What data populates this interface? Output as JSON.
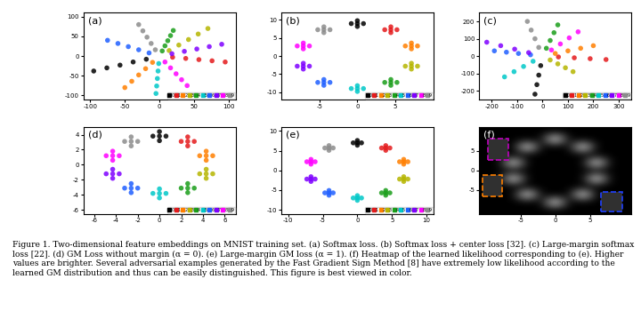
{
  "caption": "Figure 1. Two-dimensional feature embeddings on MNIST training set. (a) Softmax loss. (b) Softmax loss + center loss [32]. (c) Large-margin softmax loss [22]. (d) GM Loss without margin (α = 0). (e) Large-margin GM loss (α = 1). (f) Heatmap of the learned likelihood corresponding to (e). Higher values are brighter. Several adversarial examples generated by the Fast Gradient Sign Method [8] have extremely low likelihood according to the learned GM distribution and thus can be easily distinguished. This figure is best viewed in color.",
  "chart_data": [
    {
      "type": "scatter",
      "title": "(a)",
      "legend": "lower right",
      "xlim": [
        -110,
        110
      ],
      "xticks": [
        -100,
        -50,
        0,
        50,
        100
      ],
      "ylim": [
        -110,
        110
      ],
      "yticks": [
        -100,
        -50,
        0,
        50,
        100
      ],
      "series": [
        {
          "name": "0",
          "color": "#000000",
          "x": [
            -19,
            -38,
            -57,
            -76,
            -95
          ],
          "y": [
            -8,
            -15,
            -23,
            -30,
            -38
          ]
        },
        {
          "name": "1",
          "color": "#e41a1c",
          "x": [
            19,
            38,
            57,
            76,
            95
          ],
          "y": [
            -3,
            -6,
            -9,
            -12,
            -15
          ]
        },
        {
          "name": "2",
          "color": "#ff7f00",
          "x": [
            -10,
            -20,
            -30,
            -40,
            -50
          ],
          "y": [
            -16,
            -32,
            -48,
            -64,
            -80
          ]
        },
        {
          "name": "3",
          "color": "#b5b500",
          "x": [
            14,
            28,
            42,
            56,
            70
          ],
          "y": [
            14,
            28,
            42,
            56,
            70
          ]
        },
        {
          "name": "4",
          "color": "#1a9e1a",
          "x": [
            4,
            8,
            12,
            16,
            20
          ],
          "y": [
            13,
            26,
            39,
            52,
            65
          ]
        },
        {
          "name": "5",
          "color": "#00c8c8",
          "x": [
            -1,
            -2,
            -3,
            -4,
            -5
          ],
          "y": [
            -19,
            -38,
            -57,
            -76,
            -95
          ]
        },
        {
          "name": "6",
          "color": "#1f5fff",
          "x": [
            -15,
            -30,
            -45,
            -60,
            -75
          ],
          "y": [
            8,
            16,
            24,
            32,
            40
          ]
        },
        {
          "name": "7",
          "color": "#7f00ff",
          "x": [
            18,
            36,
            54,
            72,
            90
          ],
          "y": [
            6,
            12,
            18,
            24,
            30
          ]
        },
        {
          "name": "8",
          "color": "#ff00ff",
          "x": [
            8,
            16,
            24,
            32,
            40
          ],
          "y": [
            -15,
            -30,
            -45,
            -60,
            -75
          ]
        },
        {
          "name": "9",
          "color": "#8c8c8c",
          "x": [
            -6,
            -12,
            -18,
            -24,
            -30
          ],
          "y": [
            16,
            32,
            48,
            64,
            80
          ]
        }
      ]
    },
    {
      "type": "scatter",
      "title": "(b)",
      "legend": "lower right",
      "xlim": [
        -10,
        10
      ],
      "xticks": [
        -5,
        0,
        5
      ],
      "ylim": [
        -12,
        12
      ],
      "yticks": [
        -10,
        -5,
        0,
        5,
        10
      ],
      "series": [
        {
          "name": "0",
          "color": "#000000",
          "x": [
            0,
            -0.8,
            0.8,
            0,
            0
          ],
          "y": [
            9,
            9,
            9,
            8.2,
            9.8
          ]
        },
        {
          "name": "1",
          "color": "#e41a1c",
          "x": [
            4.4,
            3.6,
            5.2,
            4.4,
            4.4
          ],
          "y": [
            7.3,
            7.3,
            7.3,
            6.5,
            8.1
          ]
        },
        {
          "name": "2",
          "color": "#ff7f00",
          "x": [
            7.1,
            6.3,
            7.9,
            7.1,
            7.1
          ],
          "y": [
            2.8,
            2.8,
            2.8,
            2.0,
            3.6
          ]
        },
        {
          "name": "3",
          "color": "#b5b500",
          "x": [
            7.1,
            6.3,
            7.9,
            7.1,
            7.1
          ],
          "y": [
            -2.8,
            -2.8,
            -2.8,
            -3.6,
            -2.0
          ]
        },
        {
          "name": "4",
          "color": "#1a9e1a",
          "x": [
            4.4,
            3.6,
            5.2,
            4.4,
            4.4
          ],
          "y": [
            -7.3,
            -7.3,
            -7.3,
            -8.1,
            -6.5
          ]
        },
        {
          "name": "5",
          "color": "#00c8c8",
          "x": [
            0,
            -0.8,
            0.8,
            0,
            0
          ],
          "y": [
            -9,
            -9,
            -9,
            -9.8,
            -8.2
          ]
        },
        {
          "name": "6",
          "color": "#1f5fff",
          "x": [
            -4.4,
            -5.2,
            -3.6,
            -4.4,
            -4.4
          ],
          "y": [
            -7.3,
            -7.3,
            -7.3,
            -8.1,
            -6.5
          ]
        },
        {
          "name": "7",
          "color": "#7f00ff",
          "x": [
            -7.1,
            -7.9,
            -6.3,
            -7.1,
            -7.1
          ],
          "y": [
            -2.8,
            -2.8,
            -2.8,
            -3.6,
            -2.0
          ]
        },
        {
          "name": "8",
          "color": "#ff00ff",
          "x": [
            -7.1,
            -7.9,
            -6.3,
            -7.1,
            -7.1
          ],
          "y": [
            2.8,
            2.8,
            2.8,
            2.0,
            3.6
          ]
        },
        {
          "name": "9",
          "color": "#8c8c8c",
          "x": [
            -4.4,
            -5.2,
            -3.6,
            -4.4,
            -4.4
          ],
          "y": [
            7.3,
            7.3,
            7.3,
            6.5,
            8.1
          ]
        }
      ]
    },
    {
      "type": "scatter",
      "title": "(c)",
      "legend": "lower right",
      "xlim": [
        -250,
        350
      ],
      "xticks": [
        -200,
        -100,
        0,
        100,
        200,
        300
      ],
      "ylim": [
        -250,
        250
      ],
      "yticks": [
        -200,
        -100,
        0,
        100,
        200
      ],
      "series": [
        {
          "name": "0",
          "color": "#000000",
          "x": [
            -7.5,
            -15,
            -22.5,
            -30
          ],
          "y": [
            -55,
            -110,
            -165,
            -220
          ]
        },
        {
          "name": "1",
          "color": "#e41a1c",
          "x": [
            62.5,
            125,
            187.5,
            250
          ],
          "y": [
            -5,
            -10,
            -15,
            -20
          ]
        },
        {
          "name": "2",
          "color": "#ff7f00",
          "x": [
            50,
            100,
            150,
            200
          ],
          "y": [
            15,
            30,
            45,
            60
          ]
        },
        {
          "name": "3",
          "color": "#b5b500",
          "x": [
            30,
            60,
            90,
            120
          ],
          "y": [
            -22.5,
            -45,
            -67.5,
            -90
          ]
        },
        {
          "name": "4",
          "color": "#1a9e1a",
          "x": [
            15,
            30,
            45,
            60
          ],
          "y": [
            45,
            90,
            135,
            180
          ]
        },
        {
          "name": "5",
          "color": "#00c8c8",
          "x": [
            -37.5,
            -75,
            -112.5,
            -150
          ],
          "y": [
            -30,
            -60,
            -90,
            -120
          ]
        },
        {
          "name": "6",
          "color": "#1f5fff",
          "x": [
            -47.5,
            -95,
            -142.5,
            -190
          ],
          "y": [
            7.5,
            15,
            22.5,
            30
          ]
        },
        {
          "name": "7",
          "color": "#7f00ff",
          "x": [
            -55,
            -110,
            -165,
            -220
          ],
          "y": [
            20,
            40,
            60,
            80
          ]
        },
        {
          "name": "8",
          "color": "#ff00ff",
          "x": [
            35,
            70,
            105,
            140
          ],
          "y": [
            35,
            70,
            105,
            140
          ]
        },
        {
          "name": "9",
          "color": "#8c8c8c",
          "x": [
            -15,
            -30,
            -45,
            -60
          ],
          "y": [
            50,
            100,
            150,
            200
          ]
        }
      ]
    },
    {
      "type": "scatter",
      "title": "(d)",
      "legend": "lower right",
      "xlim": [
        -7,
        7
      ],
      "xticks": [
        -6,
        -4,
        -2,
        0,
        2,
        4,
        6
      ],
      "ylim": [
        -6.5,
        5
      ],
      "yticks": [
        -6,
        -4,
        -2,
        0,
        2,
        4
      ],
      "series": [
        {
          "name": "0",
          "color": "#000000",
          "x": [
            0,
            -0.6,
            0.6,
            0,
            0
          ],
          "y": [
            3.8,
            3.8,
            3.8,
            3.2,
            4.4
          ]
        },
        {
          "name": "1",
          "color": "#e41a1c",
          "x": [
            2.6,
            2.0,
            3.2,
            2.6,
            2.6
          ],
          "y": [
            3.1,
            3.1,
            3.1,
            2.5,
            3.7
          ]
        },
        {
          "name": "2",
          "color": "#ff7f00",
          "x": [
            4.3,
            3.7,
            4.9,
            4.3,
            4.3
          ],
          "y": [
            1.2,
            1.2,
            1.2,
            0.6,
            1.8
          ]
        },
        {
          "name": "3",
          "color": "#b5b500",
          "x": [
            4.3,
            3.7,
            4.9,
            4.3,
            4.3
          ],
          "y": [
            -1.2,
            -1.2,
            -1.2,
            -1.8,
            -0.6
          ]
        },
        {
          "name": "4",
          "color": "#1a9e1a",
          "x": [
            2.6,
            2.0,
            3.2,
            2.6,
            2.6
          ],
          "y": [
            -3.1,
            -3.1,
            -3.1,
            -3.7,
            -2.5
          ]
        },
        {
          "name": "5",
          "color": "#00c8c8",
          "x": [
            0,
            -0.6,
            0.6,
            0,
            0
          ],
          "y": [
            -3.8,
            -3.8,
            -3.8,
            -4.4,
            -3.2
          ]
        },
        {
          "name": "6",
          "color": "#1f5fff",
          "x": [
            -2.6,
            -3.2,
            -2.0,
            -2.6,
            -2.6
          ],
          "y": [
            -3.1,
            -3.1,
            -3.1,
            -3.7,
            -2.5
          ]
        },
        {
          "name": "7",
          "color": "#7f00ff",
          "x": [
            -4.3,
            -4.9,
            -3.7,
            -4.3,
            -4.3
          ],
          "y": [
            -1.2,
            -1.2,
            -1.2,
            -1.8,
            -0.6
          ]
        },
        {
          "name": "8",
          "color": "#ff00ff",
          "x": [
            -4.3,
            -4.9,
            -3.7,
            -4.3,
            -4.3
          ],
          "y": [
            1.2,
            1.2,
            1.2,
            0.6,
            1.8
          ]
        },
        {
          "name": "9",
          "color": "#8c8c8c",
          "x": [
            -2.6,
            -3.2,
            -2.0,
            -2.6,
            -2.6
          ],
          "y": [
            3.1,
            3.1,
            3.1,
            2.5,
            3.7
          ]
        }
      ]
    },
    {
      "type": "scatter",
      "title": "(e)",
      "legend": "lower right",
      "xlim": [
        -11,
        11
      ],
      "xticks": [
        -10,
        -5,
        0,
        5,
        10
      ],
      "ylim": [
        -11,
        11
      ],
      "yticks": [
        -10,
        -5,
        0,
        5,
        10
      ],
      "series": [
        {
          "name": "0",
          "color": "#000000",
          "x": [
            0,
            -0.6,
            0.6,
            0,
            0
          ],
          "y": [
            7,
            7,
            7,
            6.4,
            7.6
          ]
        },
        {
          "name": "1",
          "color": "#e41a1c",
          "x": [
            4.1,
            3.5,
            4.7,
            4.1,
            4.1
          ],
          "y": [
            5.7,
            5.7,
            5.7,
            5.1,
            6.3
          ]
        },
        {
          "name": "2",
          "color": "#ff7f00",
          "x": [
            6.7,
            6.1,
            7.3,
            6.7,
            6.7
          ],
          "y": [
            2.2,
            2.2,
            2.2,
            1.6,
            2.8
          ]
        },
        {
          "name": "3",
          "color": "#b5b500",
          "x": [
            6.7,
            6.1,
            7.3,
            6.7,
            6.7
          ],
          "y": [
            -2.2,
            -2.2,
            -2.2,
            -2.8,
            -1.6
          ]
        },
        {
          "name": "4",
          "color": "#1a9e1a",
          "x": [
            4.1,
            3.5,
            4.7,
            4.1,
            4.1
          ],
          "y": [
            -5.7,
            -5.7,
            -5.7,
            -6.3,
            -5.1
          ]
        },
        {
          "name": "5",
          "color": "#00c8c8",
          "x": [
            0,
            -0.6,
            0.6,
            0,
            0
          ],
          "y": [
            -7,
            -7,
            -7,
            -7.6,
            -6.4
          ]
        },
        {
          "name": "6",
          "color": "#1f5fff",
          "x": [
            -4.1,
            -4.7,
            -3.5,
            -4.1,
            -4.1
          ],
          "y": [
            -5.7,
            -5.7,
            -5.7,
            -6.3,
            -5.1
          ]
        },
        {
          "name": "7",
          "color": "#7f00ff",
          "x": [
            -6.7,
            -7.3,
            -6.1,
            -6.7,
            -6.7
          ],
          "y": [
            -2.2,
            -2.2,
            -2.2,
            -2.8,
            -1.6
          ]
        },
        {
          "name": "8",
          "color": "#ff00ff",
          "x": [
            -6.7,
            -7.3,
            -6.1,
            -6.7,
            -6.7
          ],
          "y": [
            2.2,
            2.2,
            2.2,
            1.6,
            2.8
          ]
        },
        {
          "name": "9",
          "color": "#8c8c8c",
          "x": [
            -4.1,
            -4.7,
            -3.5,
            -4.1,
            -4.1
          ],
          "y": [
            5.7,
            5.7,
            5.7,
            5.1,
            6.3
          ]
        }
      ]
    },
    {
      "type": "heatmap",
      "title": "(f)",
      "xlim": [
        -11,
        11
      ],
      "xticks": [
        -5,
        0,
        5
      ],
      "ylim": [
        -11,
        11
      ],
      "yticks": [
        -5,
        0,
        5
      ],
      "x": [
        -10,
        -8,
        -6,
        -4,
        -2,
        0,
        2,
        4,
        6,
        8,
        10
      ],
      "y": [
        -10,
        -8,
        -6,
        -4,
        -2,
        0,
        2,
        4,
        6,
        8,
        10
      ],
      "cells": [
        [
          0,
          0,
          0,
          0,
          0,
          0,
          0,
          0,
          0,
          0,
          0
        ],
        [
          0,
          0,
          0,
          0,
          0,
          1,
          0,
          0,
          0,
          0,
          0
        ],
        [
          0,
          0,
          0,
          1,
          0,
          0,
          0,
          1,
          0,
          0,
          0
        ],
        [
          0,
          0,
          0,
          0,
          0,
          0,
          0,
          0,
          0,
          0,
          0
        ],
        [
          0,
          0,
          1,
          0,
          0,
          0,
          0,
          0,
          1,
          0,
          0
        ],
        [
          0,
          0,
          0,
          0,
          0,
          0,
          0,
          0,
          0,
          0,
          0
        ],
        [
          0,
          0,
          1,
          0,
          0,
          0,
          0,
          0,
          1,
          0,
          0
        ],
        [
          0,
          0,
          0,
          0,
          0,
          0,
          0,
          0,
          0,
          0,
          0
        ],
        [
          0,
          0,
          0,
          1,
          0,
          0,
          0,
          1,
          0,
          0,
          0
        ],
        [
          0,
          0,
          0,
          0,
          0,
          1,
          0,
          0,
          0,
          0,
          0
        ],
        [
          0,
          0,
          0,
          0,
          0,
          0,
          0,
          0,
          0,
          0,
          0
        ]
      ]
    }
  ]
}
